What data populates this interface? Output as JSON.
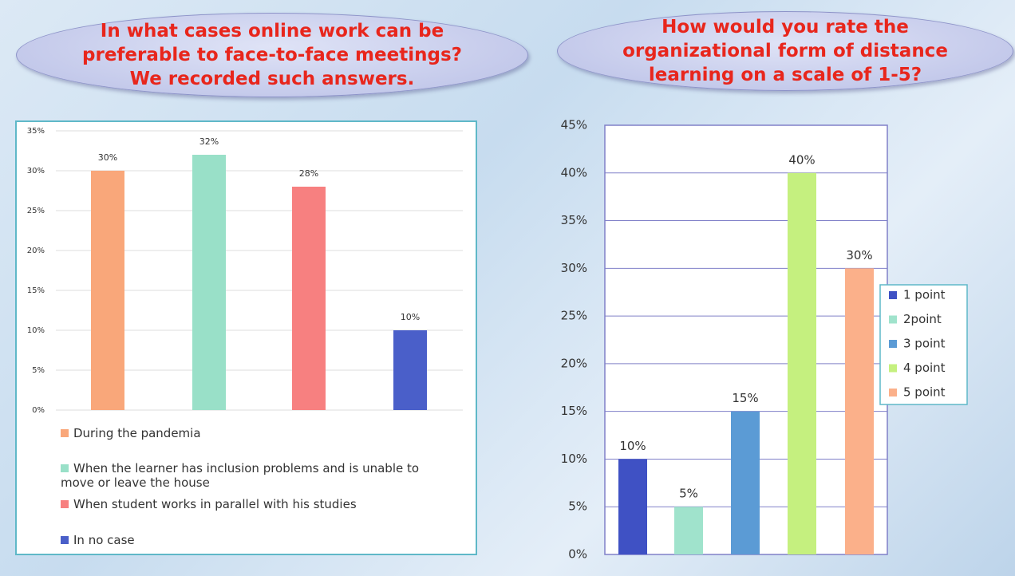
{
  "chart_data": [
    {
      "type": "bar",
      "title": [
        "In what cases online  work can be",
        "preferable to face-to-face meetings?",
        "We recorded such answers."
      ],
      "categories": [
        "During the pandemia",
        "When the learner has inclusion problems and is unable to move or leave the house",
        "When student works in parallel with his studies",
        "In no case"
      ],
      "values": [
        30,
        32,
        28,
        10
      ],
      "value_labels": [
        "30%",
        "32%",
        "28%",
        "10%"
      ],
      "colors": [
        "#f9a77a",
        "#99e0c8",
        "#f78080",
        "#4a5fc9"
      ],
      "ylim": [
        0,
        35
      ],
      "yticks": [
        {
          "value": 0,
          "label": "0%"
        },
        {
          "value": 5,
          "label": "5%"
        },
        {
          "value": 10,
          "label": "10%"
        },
        {
          "value": 15,
          "label": "15%"
        },
        {
          "value": 20,
          "label": "20%"
        },
        {
          "value": 25,
          "label": "25%"
        },
        {
          "value": 30,
          "label": "30%"
        },
        {
          "value": 35,
          "label": "35%"
        }
      ],
      "grid": true,
      "legend": "bottom"
    },
    {
      "type": "bar",
      "title": [
        "How would you rate the",
        "organizational form of distance",
        "learning on a scale of 1-5?"
      ],
      "categories": [
        "1 point",
        "2point",
        "3 point",
        "4 point",
        "5 point"
      ],
      "values": [
        10,
        5,
        15,
        40,
        30
      ],
      "value_labels": [
        "10%",
        "5%",
        "15%",
        "40%",
        "30%"
      ],
      "colors": [
        "#3f51c4",
        "#a0e3cc",
        "#5b9bd5",
        "#c5f07f",
        "#fbb08a"
      ],
      "ylim": [
        0,
        45
      ],
      "yticks": [
        {
          "value": 0,
          "label": "0%"
        },
        {
          "value": 5,
          "label": "5%"
        },
        {
          "value": 10,
          "label": "10%"
        },
        {
          "value": 15,
          "label": "15%"
        },
        {
          "value": 20,
          "label": "20%"
        },
        {
          "value": 25,
          "label": "25%"
        },
        {
          "value": 30,
          "label": "30%"
        },
        {
          "value": 35,
          "label": "35%"
        },
        {
          "value": 40,
          "label": "40%"
        },
        {
          "value": 45,
          "label": "45%"
        }
      ],
      "grid": true,
      "legend": "right"
    }
  ]
}
